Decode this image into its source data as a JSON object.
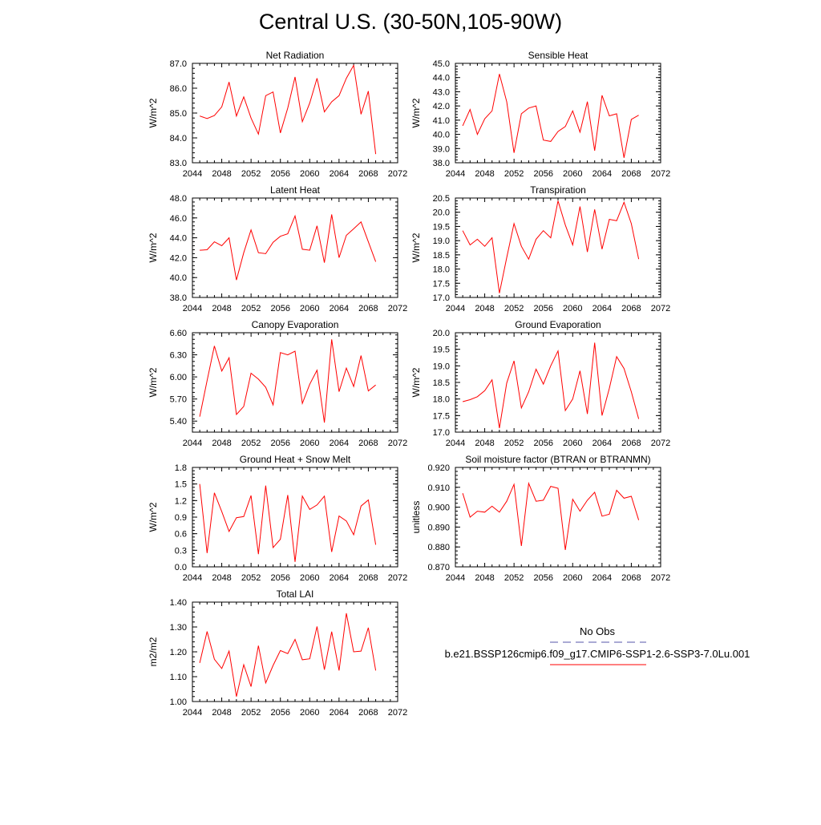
{
  "figure": {
    "title": "Central U.S. (30-50N,105-90W)"
  },
  "legend": {
    "obs_label": "No Obs",
    "obs_color": "#5555aa",
    "case_label": "b.e21.BSSP126cmip6.f09_g17.CMIP6-SSP1-2.6-SSP3-7.0Lu.001",
    "case_color": "#ff0000"
  },
  "chart_data": [
    {
      "type": "line",
      "title": "Net Radiation",
      "ylabel": "W/m^2",
      "xlim": [
        2044,
        2072
      ],
      "xticks": [
        "2044",
        "2048",
        "2052",
        "2056",
        "2060",
        "2064",
        "2068",
        "2072"
      ],
      "ylim": [
        83.0,
        87.0
      ],
      "yticks": [
        "83.0",
        "84.0",
        "85.0",
        "86.0",
        "87.0"
      ],
      "series": [
        {
          "x": [
            2045,
            2046,
            2047,
            2048,
            2049,
            2050,
            2051,
            2052,
            2053,
            2054,
            2055,
            2056,
            2057,
            2058,
            2059,
            2060,
            2061,
            2062,
            2063,
            2064,
            2065,
            2066,
            2067,
            2068,
            2069
          ],
          "values": [
            84.88,
            84.78,
            84.9,
            85.25,
            86.25,
            84.88,
            85.65,
            84.8,
            84.15,
            85.7,
            85.85,
            84.2,
            85.2,
            86.45,
            84.65,
            85.4,
            86.4,
            85.05,
            85.45,
            85.7,
            86.4,
            86.92,
            84.95,
            85.88,
            83.35
          ]
        }
      ]
    },
    {
      "type": "line",
      "title": "Sensible Heat",
      "ylabel": "W/m^2",
      "xlim": [
        2044,
        2072
      ],
      "xticks": [
        "2044",
        "2048",
        "2052",
        "2056",
        "2060",
        "2064",
        "2068",
        "2072"
      ],
      "ylim": [
        38.0,
        45.0
      ],
      "yticks": [
        "38.0",
        "39.0",
        "40.0",
        "41.0",
        "42.0",
        "43.0",
        "44.0",
        "45.0"
      ],
      "series": [
        {
          "x": [
            2045,
            2046,
            2047,
            2048,
            2049,
            2050,
            2051,
            2052,
            2053,
            2054,
            2055,
            2056,
            2057,
            2058,
            2059,
            2060,
            2061,
            2062,
            2063,
            2064,
            2065,
            2066,
            2067,
            2068,
            2069
          ],
          "values": [
            40.6,
            41.75,
            40.0,
            41.1,
            41.65,
            44.25,
            42.3,
            38.7,
            41.45,
            41.85,
            42.0,
            39.6,
            39.5,
            40.2,
            40.55,
            41.65,
            40.15,
            42.3,
            38.85,
            42.75,
            41.3,
            41.45,
            38.35,
            41.05,
            41.35
          ]
        }
      ]
    },
    {
      "type": "line",
      "title": "Latent Heat",
      "ylabel": "W/m^2",
      "xlim": [
        2044,
        2072
      ],
      "xticks": [
        "2044",
        "2048",
        "2052",
        "2056",
        "2060",
        "2064",
        "2068",
        "2072"
      ],
      "ylim": [
        38.0,
        48.0
      ],
      "yticks": [
        "38.0",
        "40.0",
        "42.0",
        "44.0",
        "46.0",
        "48.0"
      ],
      "series": [
        {
          "x": [
            2045,
            2046,
            2047,
            2048,
            2049,
            2050,
            2051,
            2052,
            2053,
            2054,
            2055,
            2056,
            2057,
            2058,
            2059,
            2060,
            2061,
            2062,
            2063,
            2064,
            2065,
            2066,
            2067,
            2068,
            2069
          ],
          "values": [
            42.75,
            42.8,
            43.6,
            43.2,
            44.0,
            39.75,
            42.5,
            44.8,
            42.5,
            42.4,
            43.55,
            44.15,
            44.4,
            46.2,
            42.85,
            42.75,
            45.2,
            41.5,
            46.35,
            42.0,
            44.25,
            44.9,
            45.6,
            43.6,
            41.6
          ]
        }
      ]
    },
    {
      "type": "line",
      "title": "Transpiration",
      "ylabel": "W/m^2",
      "xlim": [
        2044,
        2072
      ],
      "xticks": [
        "2044",
        "2048",
        "2052",
        "2056",
        "2060",
        "2064",
        "2068",
        "2072"
      ],
      "ylim": [
        17.0,
        20.5
      ],
      "yticks": [
        "17.0",
        "17.5",
        "18.0",
        "18.5",
        "19.0",
        "19.5",
        "20.0",
        "20.5"
      ],
      "series": [
        {
          "x": [
            2045,
            2046,
            2047,
            2048,
            2049,
            2050,
            2051,
            2052,
            2053,
            2054,
            2055,
            2056,
            2057,
            2058,
            2059,
            2060,
            2061,
            2062,
            2063,
            2064,
            2065,
            2066,
            2067,
            2068,
            2069
          ],
          "values": [
            19.35,
            18.85,
            19.05,
            18.8,
            19.1,
            17.15,
            18.4,
            19.6,
            18.8,
            18.35,
            19.05,
            19.35,
            19.1,
            20.4,
            19.55,
            18.85,
            20.2,
            18.6,
            20.1,
            18.7,
            19.75,
            19.7,
            20.35,
            19.6,
            18.35
          ]
        }
      ]
    },
    {
      "type": "line",
      "title": "Canopy Evaporation",
      "ylabel": "W/m^2",
      "xlim": [
        2044,
        2072
      ],
      "xticks": [
        "2044",
        "2048",
        "2052",
        "2056",
        "2060",
        "2064",
        "2068",
        "2072"
      ],
      "ylim": [
        5.25,
        6.6
      ],
      "yticks": [
        "5.40",
        "5.70",
        "6.00",
        "6.30",
        "6.60"
      ],
      "series": [
        {
          "x": [
            2045,
            2046,
            2047,
            2048,
            2049,
            2050,
            2051,
            2052,
            2053,
            2054,
            2055,
            2056,
            2057,
            2058,
            2059,
            2060,
            2061,
            2062,
            2063,
            2064,
            2065,
            2066,
            2067,
            2068,
            2069
          ],
          "values": [
            5.46,
            5.95,
            6.42,
            6.08,
            6.26,
            5.49,
            5.6,
            6.05,
            5.97,
            5.86,
            5.62,
            6.33,
            6.3,
            6.35,
            5.64,
            5.9,
            6.09,
            5.38,
            6.51,
            5.8,
            6.12,
            5.87,
            6.29,
            5.81,
            5.89
          ]
        }
      ]
    },
    {
      "type": "line",
      "title": "Ground Evaporation",
      "ylabel": "W/m^2",
      "xlim": [
        2044,
        2072
      ],
      "xticks": [
        "2044",
        "2048",
        "2052",
        "2056",
        "2060",
        "2064",
        "2068",
        "2072"
      ],
      "ylim": [
        17.0,
        20.0
      ],
      "yticks": [
        "17.0",
        "17.5",
        "18.0",
        "18.5",
        "19.0",
        "19.5",
        "20.0"
      ],
      "series": [
        {
          "x": [
            2045,
            2046,
            2047,
            2048,
            2049,
            2050,
            2051,
            2052,
            2053,
            2054,
            2055,
            2056,
            2057,
            2058,
            2059,
            2060,
            2061,
            2062,
            2063,
            2064,
            2065,
            2066,
            2067,
            2068,
            2069
          ],
          "values": [
            17.92,
            17.98,
            18.07,
            18.25,
            18.58,
            17.12,
            18.48,
            19.15,
            17.73,
            18.22,
            18.9,
            18.45,
            19.0,
            19.45,
            17.65,
            18.0,
            18.85,
            17.55,
            19.7,
            17.5,
            18.32,
            19.28,
            18.92,
            18.22,
            17.4
          ]
        }
      ]
    },
    {
      "type": "line",
      "title": "Ground Heat + Snow Melt",
      "ylabel": "W/m^2",
      "xlim": [
        2044,
        2072
      ],
      "xticks": [
        "2044",
        "2048",
        "2052",
        "2056",
        "2060",
        "2064",
        "2068",
        "2072"
      ],
      "ylim": [
        0.0,
        1.8
      ],
      "yticks": [
        "0.0",
        "0.3",
        "0.6",
        "0.9",
        "1.2",
        "1.5",
        "1.8"
      ],
      "series": [
        {
          "x": [
            2045,
            2046,
            2047,
            2048,
            2049,
            2050,
            2051,
            2052,
            2053,
            2054,
            2055,
            2056,
            2057,
            2058,
            2059,
            2060,
            2061,
            2062,
            2063,
            2064,
            2065,
            2066,
            2067,
            2068,
            2069
          ],
          "values": [
            1.5,
            0.25,
            1.34,
            1.0,
            0.64,
            0.89,
            0.91,
            1.29,
            0.23,
            1.47,
            0.35,
            0.5,
            1.3,
            0.09,
            1.28,
            1.04,
            1.12,
            1.28,
            0.27,
            0.92,
            0.83,
            0.58,
            1.1,
            1.21,
            0.4
          ]
        }
      ]
    },
    {
      "type": "line",
      "title": "Soil moisture factor (BTRAN or BTRANMN)",
      "ylabel": "unitless",
      "xlim": [
        2044,
        2072
      ],
      "xticks": [
        "2044",
        "2048",
        "2052",
        "2056",
        "2060",
        "2064",
        "2068",
        "2072"
      ],
      "ylim": [
        0.87,
        0.92
      ],
      "yticks": [
        "0.870",
        "0.880",
        "0.890",
        "0.900",
        "0.910",
        "0.920"
      ],
      "series": [
        {
          "x": [
            2045,
            2046,
            2047,
            2048,
            2049,
            2050,
            2051,
            2052,
            2053,
            2054,
            2055,
            2056,
            2057,
            2058,
            2059,
            2060,
            2061,
            2062,
            2063,
            2064,
            2065,
            2066,
            2067,
            2068,
            2069
          ],
          "values": [
            0.907,
            0.895,
            0.898,
            0.8975,
            0.9005,
            0.8975,
            0.903,
            0.9115,
            0.8805,
            0.912,
            0.903,
            0.9035,
            0.9105,
            0.9095,
            0.8785,
            0.904,
            0.898,
            0.9035,
            0.9075,
            0.8955,
            0.8965,
            0.9085,
            0.9045,
            0.9055,
            0.8935
          ]
        }
      ]
    },
    {
      "type": "line",
      "title": "Total LAI",
      "ylabel": "m2/m2",
      "xlim": [
        2044,
        2072
      ],
      "xticks": [
        "2044",
        "2048",
        "2052",
        "2056",
        "2060",
        "2064",
        "2068",
        "2072"
      ],
      "ylim": [
        1.0,
        1.4
      ],
      "yticks": [
        "1.00",
        "1.10",
        "1.20",
        "1.30",
        "1.40"
      ],
      "series": [
        {
          "x": [
            2045,
            2046,
            2047,
            2048,
            2049,
            2050,
            2051,
            2052,
            2053,
            2054,
            2055,
            2056,
            2057,
            2058,
            2059,
            2060,
            2061,
            2062,
            2063,
            2064,
            2065,
            2066,
            2067,
            2068,
            2069
          ],
          "values": [
            1.155,
            1.282,
            1.17,
            1.133,
            1.203,
            1.02,
            1.148,
            1.06,
            1.225,
            1.075,
            1.145,
            1.205,
            1.193,
            1.25,
            1.168,
            1.172,
            1.302,
            1.128,
            1.281,
            1.125,
            1.355,
            1.2,
            1.203,
            1.297,
            1.125
          ]
        }
      ]
    }
  ]
}
